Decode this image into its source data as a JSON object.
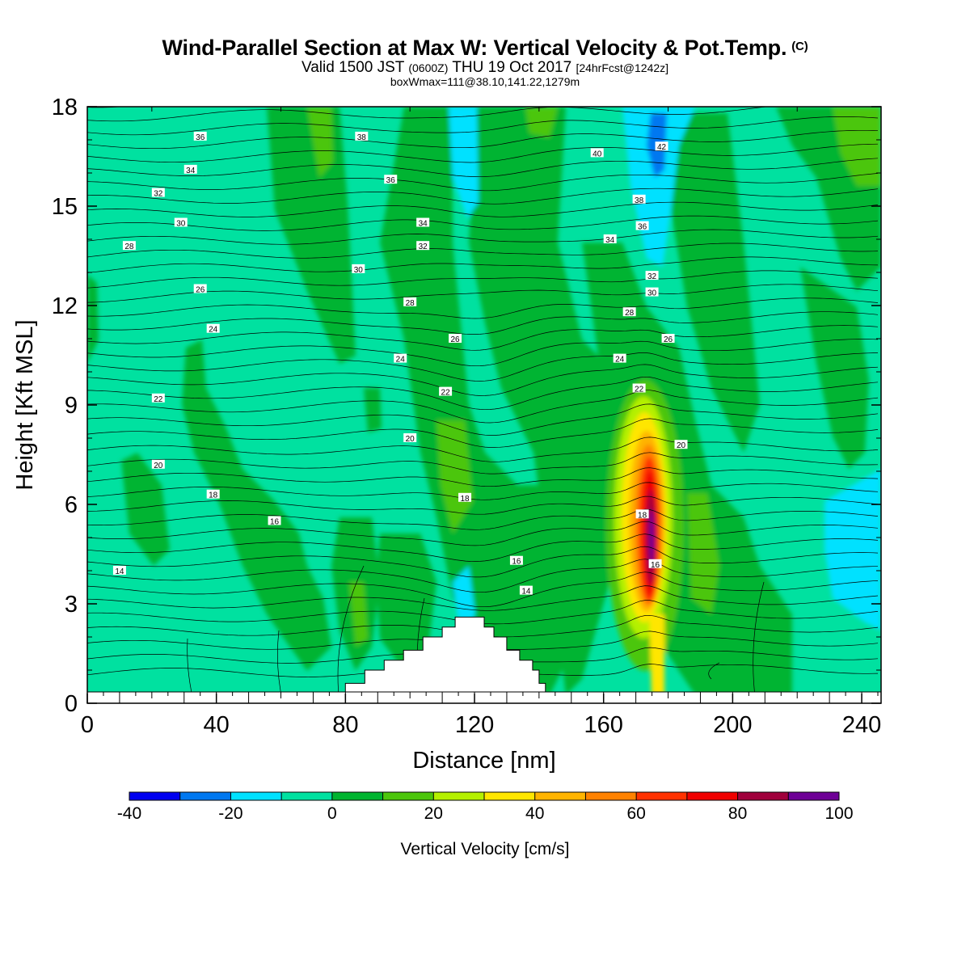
{
  "titles": {
    "main": "Wind-Parallel Section at Max W: Vertical Velocity & Pot.Temp.",
    "copyright": "(C)",
    "valid_a": "Valid 1500 JST",
    "valid_utc": "(0600Z)",
    "valid_b": "THU 19 Oct 2017",
    "forecast": "[24hrFcst@1242z]",
    "boxinfo": "boxWmax=111@38.10,141.22,1279m"
  },
  "chart_data": {
    "type": "heatmap",
    "xlabel": "Distance [nm]",
    "ylabel": "Height [Kft MSL]",
    "xlim": [
      0,
      246
    ],
    "ylim": [
      0,
      18
    ],
    "xticks": [
      0,
      40,
      80,
      120,
      160,
      200,
      240
    ],
    "yticks": [
      0,
      3,
      6,
      9,
      12,
      15,
      18
    ],
    "grid": false,
    "colorbar": {
      "label": "Vertical Velocity [cm/s]",
      "bounds": [
        -40,
        100
      ],
      "step": 10,
      "tick_labels": [
        -40,
        -20,
        0,
        20,
        40,
        60,
        80,
        100
      ],
      "colors": [
        "#0000f0",
        "#0078f0",
        "#00e1ff",
        "#00e1a0",
        "#00b430",
        "#4cc60c",
        "#b4f000",
        "#ffe600",
        "#ffb400",
        "#ff8200",
        "#ff3200",
        "#f00000",
        "#a0003c",
        "#6e0096"
      ]
    },
    "terrain": [
      [
        80,
        0
      ],
      [
        80,
        0.6
      ],
      [
        86,
        0.6
      ],
      [
        86,
        1.0
      ],
      [
        92,
        1.0
      ],
      [
        92,
        1.3
      ],
      [
        98,
        1.3
      ],
      [
        98,
        1.6
      ],
      [
        104,
        1.6
      ],
      [
        104,
        2.0
      ],
      [
        110,
        2.0
      ],
      [
        110,
        2.3
      ],
      [
        114,
        2.3
      ],
      [
        114,
        2.6
      ],
      [
        123,
        2.6
      ],
      [
        123,
        2.3
      ],
      [
        126,
        2.3
      ],
      [
        126,
        2.0
      ],
      [
        130,
        2.0
      ],
      [
        130,
        1.6
      ],
      [
        134,
        1.6
      ],
      [
        134,
        1.3
      ],
      [
        138,
        1.3
      ],
      [
        138,
        1.0
      ],
      [
        140,
        1.0
      ],
      [
        140,
        0.6
      ],
      [
        142,
        0.6
      ],
      [
        142,
        0
      ]
    ],
    "theta_contour_labels": [
      {
        "text": "36",
        "x": 35,
        "y": 17.1
      },
      {
        "text": "38",
        "x": 85,
        "y": 17.1
      },
      {
        "text": "40",
        "x": 158,
        "y": 16.6
      },
      {
        "text": "42",
        "x": 178,
        "y": 16.8
      },
      {
        "text": "34",
        "x": 32,
        "y": 16.1
      },
      {
        "text": "36",
        "x": 94,
        "y": 15.8
      },
      {
        "text": "38",
        "x": 171,
        "y": 15.2
      },
      {
        "text": "32",
        "x": 22,
        "y": 15.4
      },
      {
        "text": "34",
        "x": 104,
        "y": 14.5
      },
      {
        "text": "36",
        "x": 172,
        "y": 14.4
      },
      {
        "text": "30",
        "x": 29,
        "y": 14.5
      },
      {
        "text": "32",
        "x": 104,
        "y": 13.8
      },
      {
        "text": "34",
        "x": 162,
        "y": 14.0
      },
      {
        "text": "28",
        "x": 13,
        "y": 13.8
      },
      {
        "text": "30",
        "x": 84,
        "y": 13.1
      },
      {
        "text": "32",
        "x": 175,
        "y": 12.9
      },
      {
        "text": "26",
        "x": 35,
        "y": 12.5
      },
      {
        "text": "28",
        "x": 100,
        "y": 12.1
      },
      {
        "text": "30",
        "x": 175,
        "y": 12.4
      },
      {
        "text": "28",
        "x": 168,
        "y": 11.8
      },
      {
        "text": "24",
        "x": 39,
        "y": 11.3
      },
      {
        "text": "26",
        "x": 114,
        "y": 11.0
      },
      {
        "text": "26",
        "x": 180,
        "y": 11.0
      },
      {
        "text": "24",
        "x": 97,
        "y": 10.4
      },
      {
        "text": "24",
        "x": 165,
        "y": 10.4
      },
      {
        "text": "22",
        "x": 22,
        "y": 9.2
      },
      {
        "text": "22",
        "x": 111,
        "y": 9.4
      },
      {
        "text": "22",
        "x": 171,
        "y": 9.5
      },
      {
        "text": "20",
        "x": 100,
        "y": 8.0
      },
      {
        "text": "20",
        "x": 184,
        "y": 7.8
      },
      {
        "text": "20",
        "x": 22,
        "y": 7.2
      },
      {
        "text": "18",
        "x": 39,
        "y": 6.3
      },
      {
        "text": "18",
        "x": 117,
        "y": 6.2
      },
      {
        "text": "18",
        "x": 172,
        "y": 5.7
      },
      {
        "text": "16",
        "x": 58,
        "y": 5.5
      },
      {
        "text": "16",
        "x": 133,
        "y": 4.3
      },
      {
        "text": "16",
        "x": 176,
        "y": 4.2
      },
      {
        "text": "14",
        "x": 10,
        "y": 4.0
      },
      {
        "text": "14",
        "x": 136,
        "y": 3.4
      }
    ]
  }
}
